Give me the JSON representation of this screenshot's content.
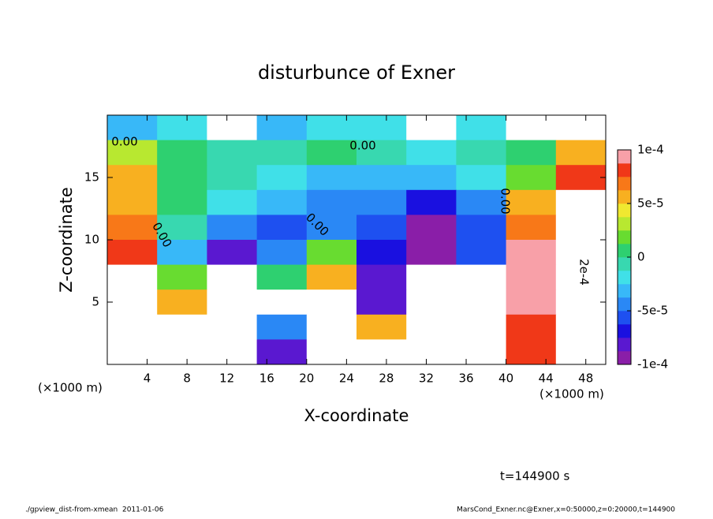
{
  "chart_data": {
    "type": "heatmap",
    "title": "disturbunce of Exner",
    "x_label": "X-coordinate",
    "y_label": "Z-coordinate",
    "x_unit": "(×1000 m)",
    "y_unit": "(×1000 m)",
    "x": [
      2.5,
      7.5,
      12.5,
      17.5,
      22.5,
      27.5,
      32.5,
      37.5,
      42.5,
      47.5
    ],
    "z": [
      19,
      17,
      15,
      13,
      11,
      9,
      7,
      5,
      3,
      1
    ],
    "values": [
      [
        -3e-05,
        -2e-05,
        0.0002,
        -3e-05,
        -2e-05,
        -2e-05,
        0.0002,
        -2e-05,
        0.0002,
        0.0002
      ],
      [
        3e-05,
        0,
        -1e-05,
        -1e-05,
        0,
        -1e-05,
        -2e-05,
        -1e-05,
        0,
        5e-05
      ],
      [
        5e-05,
        0,
        -1e-05,
        -2e-05,
        -3e-05,
        -3e-05,
        -3e-05,
        -2e-05,
        2e-05,
        8e-05
      ],
      [
        6e-05,
        0,
        -2e-05,
        -3e-05,
        -4e-05,
        -5e-05,
        -7e-05,
        -5e-05,
        5e-05,
        0.0002
      ],
      [
        7e-05,
        -1e-05,
        -5e-05,
        -6e-05,
        -5e-05,
        -6e-05,
        -9e-05,
        -6e-05,
        7e-05,
        0.0002
      ],
      [
        8e-05,
        -3e-05,
        -8e-05,
        -4e-05,
        2e-05,
        -7e-05,
        -0.0001,
        -6e-05,
        9e-05,
        0.0002
      ],
      [
        0.00011,
        2e-05,
        0.0002,
        0,
        5e-05,
        -8e-05,
        0.0002,
        0.0002,
        0.0001,
        0.0002
      ],
      [
        0.0002,
        6e-05,
        0.0002,
        0.0002,
        0.0002,
        -8e-05,
        0.0002,
        0.0002,
        9e-05,
        0.0002
      ],
      [
        0.0002,
        0.0002,
        0.0002,
        -5e-05,
        0.0002,
        5e-05,
        0.0002,
        0.0002,
        8e-05,
        0.0002
      ],
      [
        0.0002,
        0.0002,
        0.0002,
        -8e-05,
        0.0002,
        0.0002,
        0.0002,
        0.0002,
        8e-05,
        0.0002
      ]
    ],
    "xlim": [
      0,
      50
    ],
    "xticks": [
      4,
      8,
      12,
      16,
      20,
      24,
      28,
      32,
      36,
      40,
      44,
      48
    ],
    "ylim": [
      0,
      20
    ],
    "yticks": [
      5,
      10,
      15
    ],
    "clim": [
      -0.0001,
      0.0001
    ],
    "cticks": [
      {
        "value": 0.0001,
        "label": "1e-4"
      },
      {
        "value": 5e-05,
        "label": "5e-5"
      },
      0,
      {
        "value": -5e-05,
        "label": "-5e-5"
      },
      {
        "value": -0.0001,
        "label": "-1e-4"
      }
    ],
    "colors": [
      "#8a1ea8",
      "#5a18d0",
      "#1a10e0",
      "#1e50f0",
      "#2a88f5",
      "#38b8f8",
      "#40e0e8",
      "#38d8b0",
      "#2ed070",
      "#68dc30",
      "#b8e830",
      "#f0e830",
      "#f8b020",
      "#f87818",
      "#f03818",
      "#f8a0a8"
    ],
    "out_of_range_color": "#ffffff",
    "annotations": [
      "0.00",
      "0.00",
      "0.00",
      "0.00",
      "0.00",
      "2e-4"
    ],
    "time_label": "t=144900 s",
    "footer_left": "./gpview_dist-from-xmean  2011-01-06",
    "footer_right": "MarsCond_Exner.nc@Exner,x=0:50000,z=0:20000,t=144900"
  }
}
